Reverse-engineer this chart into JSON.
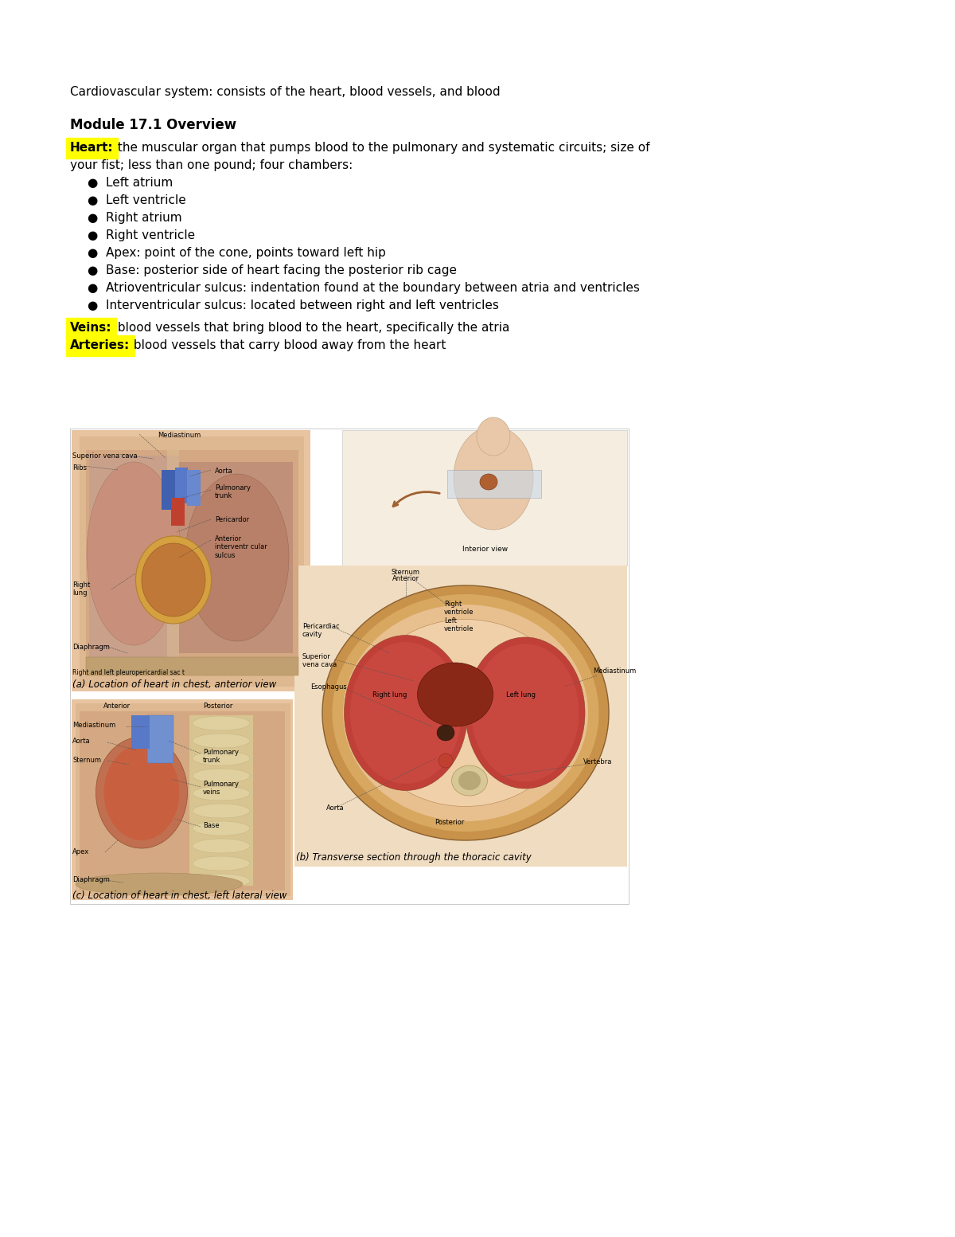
{
  "bg_color": "#ffffff",
  "page_width": 12.0,
  "page_height": 15.53,
  "dpi": 100,
  "intro_text": "Cardiovascular system: consists of the heart, blood vessels, and blood",
  "module_title": "Module 17.1 Overview",
  "heart_label": "Heart:",
  "heart_desc_line1": " the muscular organ that pumps blood to the pulmonary and systematic circuits; size of",
  "heart_desc_line2": "your fist; less than one pound; four chambers:",
  "bullet_items": [
    "Left atrium",
    "Left ventricle",
    "Right atrium",
    "Right ventricle",
    "Apex: point of the cone, points toward left hip",
    "Base: posterior side of heart facing the posterior rib cage",
    "Atrioventricular sulcus: indentation found at the boundary between atria and ventricles",
    "Interventricular sulcus: located between right and left ventricles"
  ],
  "veins_label": "Veins:",
  "veins_desc": " blood vessels that bring blood to the heart, specifically the atria",
  "arteries_label": "Arteries:",
  "arteries_desc": " blood vessels that carry blood away from the heart",
  "highlight_color": "#ffff00",
  "text_color": "#000000",
  "font_size_intro": 11.0,
  "font_size_module": 12.0,
  "font_size_body": 11.0,
  "font_size_bullet": 11.0,
  "font_size_caption": 8.5,
  "font_size_label": 6.0,
  "caption_a": "(a) Location of heart in chest, anterior view",
  "caption_b": "(b) Transverse section through the thoracic cavity",
  "caption_c": "(c) Location of heart in chest, left lateral view",
  "img_border_color": "#cccccc",
  "skin_color": "#e8c4a0",
  "lung_color": "#c8907a",
  "heart_color": "#b06030",
  "vessel_blue": "#4060b0",
  "vessel_red": "#c84030",
  "diaphragm_color": "#c0a080",
  "cross_outer": "#c8904a",
  "cross_inner": "#e0b090",
  "cross_lung_r": "#c04030",
  "cross_lung_l": "#c04030",
  "cross_heart": "#7a2818",
  "spine_color": "#d4c090",
  "lateral_body": "#ddb080",
  "arrow_color": "#a06030"
}
